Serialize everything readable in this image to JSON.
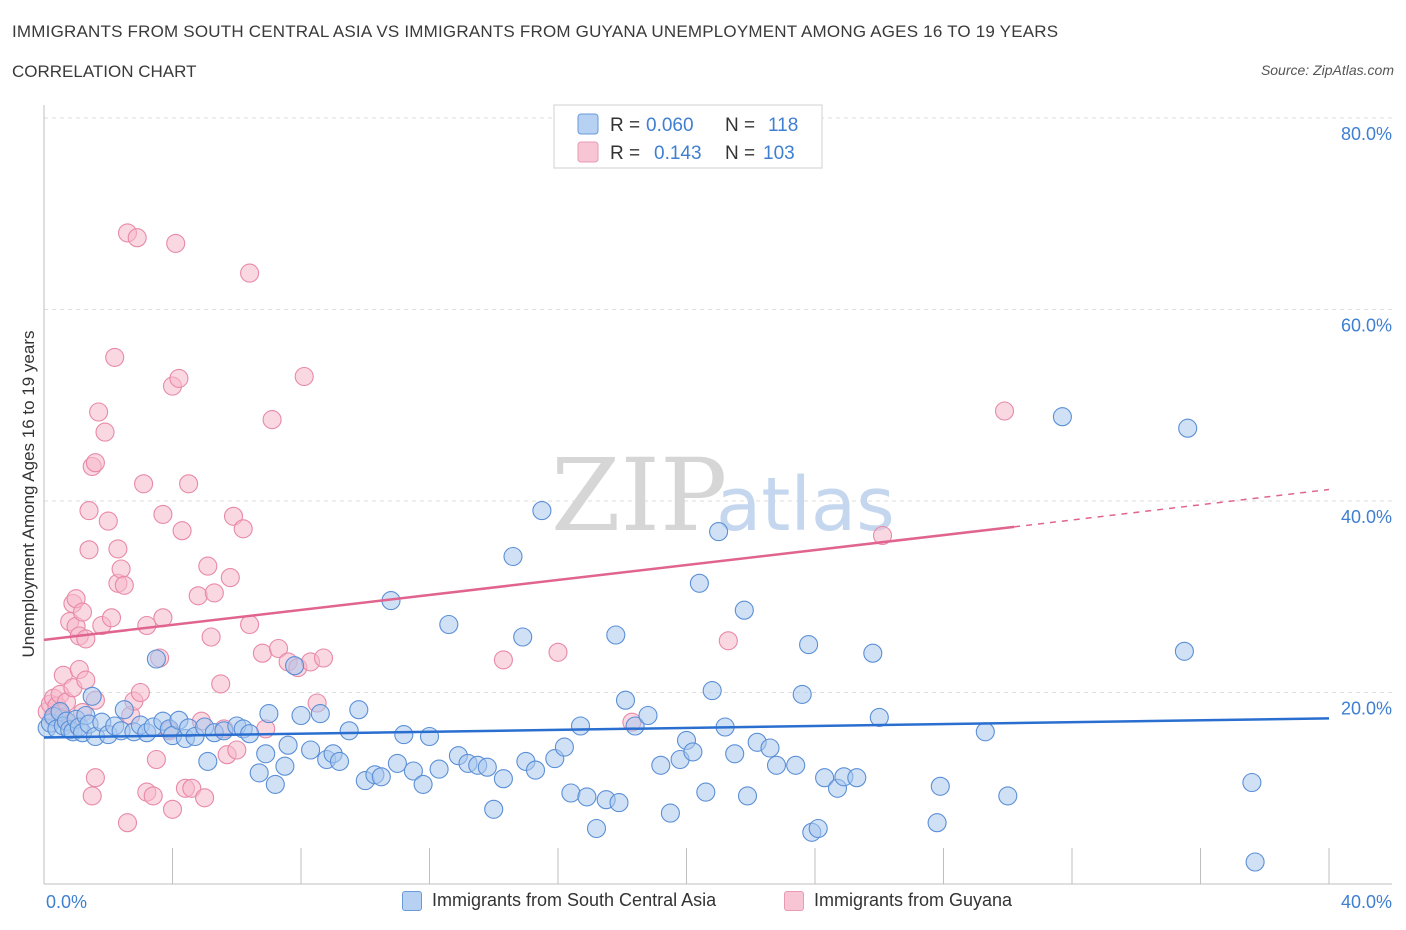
{
  "header": {
    "title": "IMMIGRANTS FROM SOUTH CENTRAL ASIA VS IMMIGRANTS FROM GUYANA UNEMPLOYMENT AMONG AGES 16 TO 19 YEARS",
    "subtitle": "CORRELATION CHART",
    "source": "Source: ZipAtlas.com"
  },
  "watermark": {
    "zip": "ZIP",
    "atlas": "atlas"
  },
  "colors": {
    "blue_fill": "#a9c8ef",
    "blue_stroke": "#5b8fd6",
    "blue_line": "#2a6fd0",
    "pink_fill": "#f5b8cb",
    "pink_stroke": "#e889a8",
    "pink_line": "#e0648f",
    "axis_label": "#3f7fd1"
  },
  "stats_legend": [
    {
      "r_label": "R = ",
      "r_value": "0.060",
      "n_label": "N = ",
      "n_value": "118"
    },
    {
      "r_label": "R = ",
      "r_value": "0.143",
      "n_label": "N = ",
      "n_value": "103"
    }
  ],
  "chart_data": {
    "type": "scatter",
    "title": "IMMIGRANTS FROM SOUTH CENTRAL ASIA VS IMMIGRANTS FROM GUYANA UNEMPLOYMENT AMONG AGES 16 TO 19 YEARS",
    "xlabel": "",
    "ylabel": "Unemployment Among Ages 16 to 19 years",
    "xlim": [
      0,
      40
    ],
    "ylim": [
      0,
      80
    ],
    "x_tick_labels": [
      "0.0%",
      "40.0%"
    ],
    "y_ticks": [
      20,
      40,
      60,
      80
    ],
    "y_tick_labels": [
      "20.0%",
      "40.0%",
      "60.0%",
      "80.0%"
    ],
    "grid": true,
    "legend_position": "top-center",
    "series": [
      {
        "name": "Immigrants from South Central Asia",
        "color": "#a9c8ef",
        "r": 0.06,
        "n": 118,
        "trend": {
          "x0": 0,
          "y0": 15.3,
          "x1": 40,
          "y1": 17.3
        },
        "points": [
          [
            0.1,
            16.3
          ],
          [
            0.2,
            16.8
          ],
          [
            0.3,
            17.5
          ],
          [
            0.4,
            16.2
          ],
          [
            0.5,
            18.0
          ],
          [
            0.6,
            16.5
          ],
          [
            0.7,
            17.0
          ],
          [
            0.8,
            16.1
          ],
          [
            0.9,
            15.9
          ],
          [
            1.0,
            17.2
          ],
          [
            1.1,
            16.4
          ],
          [
            1.2,
            15.8
          ],
          [
            1.3,
            17.6
          ],
          [
            1.4,
            16.7
          ],
          [
            1.5,
            19.6
          ],
          [
            1.6,
            15.4
          ],
          [
            1.8,
            16.9
          ],
          [
            2.0,
            15.6
          ],
          [
            2.2,
            16.5
          ],
          [
            2.4,
            16.0
          ],
          [
            2.5,
            18.2
          ],
          [
            2.8,
            15.9
          ],
          [
            3.0,
            16.6
          ],
          [
            3.2,
            15.8
          ],
          [
            3.4,
            16.4
          ],
          [
            3.5,
            23.5
          ],
          [
            3.7,
            17.0
          ],
          [
            3.9,
            16.2
          ],
          [
            4.0,
            15.5
          ],
          [
            4.2,
            17.1
          ],
          [
            4.4,
            15.2
          ],
          [
            4.5,
            16.3
          ],
          [
            4.7,
            15.4
          ],
          [
            5.0,
            16.4
          ],
          [
            5.1,
            12.8
          ],
          [
            5.3,
            15.8
          ],
          [
            5.6,
            16.0
          ],
          [
            6.0,
            16.5
          ],
          [
            6.2,
            16.2
          ],
          [
            6.4,
            15.7
          ],
          [
            6.7,
            11.6
          ],
          [
            6.9,
            13.6
          ],
          [
            7.0,
            17.8
          ],
          [
            7.2,
            10.4
          ],
          [
            7.5,
            12.3
          ],
          [
            7.6,
            14.5
          ],
          [
            7.8,
            22.8
          ],
          [
            8.0,
            17.6
          ],
          [
            8.3,
            14.0
          ],
          [
            8.6,
            17.8
          ],
          [
            8.8,
            13.0
          ],
          [
            9.0,
            13.6
          ],
          [
            9.2,
            12.8
          ],
          [
            9.5,
            16.0
          ],
          [
            9.8,
            18.2
          ],
          [
            10.0,
            10.8
          ],
          [
            10.3,
            11.4
          ],
          [
            10.5,
            11.2
          ],
          [
            10.8,
            29.6
          ],
          [
            11.0,
            12.6
          ],
          [
            11.2,
            15.6
          ],
          [
            11.5,
            11.8
          ],
          [
            11.8,
            10.4
          ],
          [
            12.0,
            15.4
          ],
          [
            12.3,
            12.0
          ],
          [
            12.6,
            27.1
          ],
          [
            12.9,
            13.4
          ],
          [
            13.2,
            12.6
          ],
          [
            13.5,
            12.4
          ],
          [
            13.8,
            12.2
          ],
          [
            14.0,
            7.8
          ],
          [
            14.3,
            11.0
          ],
          [
            14.6,
            34.2
          ],
          [
            14.9,
            25.8
          ],
          [
            15.0,
            12.8
          ],
          [
            15.3,
            11.9
          ],
          [
            15.5,
            39.0
          ],
          [
            15.9,
            13.1
          ],
          [
            16.2,
            14.3
          ],
          [
            16.4,
            9.5
          ],
          [
            16.7,
            16.5
          ],
          [
            16.9,
            9.1
          ],
          [
            17.2,
            5.8
          ],
          [
            17.5,
            8.8
          ],
          [
            17.8,
            26.0
          ],
          [
            17.9,
            8.5
          ],
          [
            18.1,
            19.2
          ],
          [
            18.4,
            16.5
          ],
          [
            18.8,
            17.6
          ],
          [
            19.2,
            12.4
          ],
          [
            19.5,
            7.4
          ],
          [
            19.8,
            13.0
          ],
          [
            20.0,
            15.0
          ],
          [
            20.2,
            13.8
          ],
          [
            20.4,
            31.4
          ],
          [
            20.6,
            9.6
          ],
          [
            20.8,
            20.2
          ],
          [
            21.0,
            36.8
          ],
          [
            21.2,
            16.4
          ],
          [
            21.5,
            13.6
          ],
          [
            21.8,
            28.6
          ],
          [
            21.9,
            9.2
          ],
          [
            22.2,
            14.8
          ],
          [
            22.6,
            14.2
          ],
          [
            22.8,
            12.4
          ],
          [
            23.4,
            12.4
          ],
          [
            23.6,
            19.8
          ],
          [
            23.8,
            25.0
          ],
          [
            23.9,
            5.4
          ],
          [
            24.1,
            5.8
          ],
          [
            24.3,
            11.1
          ],
          [
            24.7,
            10.0
          ],
          [
            24.9,
            11.2
          ],
          [
            25.3,
            11.1
          ],
          [
            25.8,
            24.1
          ],
          [
            26.0,
            17.4
          ],
          [
            27.8,
            6.4
          ],
          [
            27.9,
            10.2
          ],
          [
            29.3,
            15.9
          ],
          [
            30.0,
            9.2
          ],
          [
            31.7,
            48.8
          ],
          [
            35.6,
            47.6
          ],
          [
            35.5,
            24.3
          ],
          [
            37.6,
            10.6
          ],
          [
            37.7,
            2.3
          ]
        ]
      },
      {
        "name": "Immigrants from Guyana",
        "color": "#f5b8cb",
        "r": 0.143,
        "n": 103,
        "trend": {
          "x0": 0,
          "y0": 25.5,
          "x1": 30.2,
          "y1": 37.3,
          "dashed_x1": 40,
          "dashed_y1": 41.2
        },
        "points": [
          [
            0.1,
            18.0
          ],
          [
            0.2,
            18.8
          ],
          [
            0.3,
            17.3
          ],
          [
            0.3,
            19.4
          ],
          [
            0.4,
            18.6
          ],
          [
            0.5,
            17.8
          ],
          [
            0.5,
            19.8
          ],
          [
            0.6,
            21.8
          ],
          [
            0.6,
            17.4
          ],
          [
            0.7,
            19.0
          ],
          [
            0.8,
            27.4
          ],
          [
            0.8,
            16.8
          ],
          [
            0.9,
            29.3
          ],
          [
            0.9,
            20.5
          ],
          [
            1.0,
            26.9
          ],
          [
            1.0,
            29.8
          ],
          [
            1.1,
            25.9
          ],
          [
            1.1,
            22.4
          ],
          [
            1.2,
            28.4
          ],
          [
            1.2,
            17.9
          ],
          [
            1.3,
            25.6
          ],
          [
            1.3,
            21.3
          ],
          [
            1.4,
            39.0
          ],
          [
            1.4,
            34.9
          ],
          [
            1.5,
            43.6
          ],
          [
            1.5,
            9.2
          ],
          [
            1.6,
            11.1
          ],
          [
            1.6,
            44.0
          ],
          [
            1.6,
            19.2
          ],
          [
            1.7,
            49.3
          ],
          [
            1.8,
            27.0
          ],
          [
            1.9,
            47.2
          ],
          [
            2.0,
            37.9
          ],
          [
            2.1,
            27.8
          ],
          [
            2.2,
            55.0
          ],
          [
            2.3,
            35.0
          ],
          [
            2.3,
            31.4
          ],
          [
            2.4,
            32.9
          ],
          [
            2.5,
            31.2
          ],
          [
            2.6,
            6.4
          ],
          [
            2.6,
            68.0
          ],
          [
            2.7,
            17.6
          ],
          [
            2.8,
            19.1
          ],
          [
            2.9,
            67.5
          ],
          [
            3.0,
            20.0
          ],
          [
            3.1,
            41.8
          ],
          [
            3.2,
            27.0
          ],
          [
            3.2,
            9.6
          ],
          [
            3.4,
            9.2
          ],
          [
            3.5,
            13.0
          ],
          [
            3.6,
            23.6
          ],
          [
            3.7,
            27.8
          ],
          [
            3.7,
            38.6
          ],
          [
            3.9,
            16.0
          ],
          [
            4.0,
            7.8
          ],
          [
            4.0,
            52.0
          ],
          [
            4.1,
            66.9
          ],
          [
            4.2,
            52.8
          ],
          [
            4.3,
            36.9
          ],
          [
            4.4,
            10.0
          ],
          [
            4.5,
            41.8
          ],
          [
            4.6,
            10.0
          ],
          [
            4.8,
            30.1
          ],
          [
            4.9,
            17.0
          ],
          [
            5.0,
            9.0
          ],
          [
            5.1,
            33.2
          ],
          [
            5.2,
            25.8
          ],
          [
            5.3,
            30.4
          ],
          [
            5.5,
            20.9
          ],
          [
            5.6,
            16.2
          ],
          [
            5.7,
            13.5
          ],
          [
            5.8,
            32.0
          ],
          [
            5.9,
            38.4
          ],
          [
            6.0,
            14.0
          ],
          [
            6.2,
            37.1
          ],
          [
            6.4,
            27.1
          ],
          [
            6.4,
            63.8
          ],
          [
            6.8,
            24.1
          ],
          [
            6.9,
            16.2
          ],
          [
            7.1,
            48.5
          ],
          [
            7.3,
            24.6
          ],
          [
            7.6,
            23.2
          ],
          [
            7.9,
            22.6
          ],
          [
            8.1,
            53.0
          ],
          [
            8.3,
            23.2
          ],
          [
            8.5,
            18.9
          ],
          [
            8.7,
            23.6
          ],
          [
            14.3,
            23.4
          ],
          [
            16.0,
            24.2
          ],
          [
            18.3,
            16.9
          ],
          [
            21.3,
            25.4
          ],
          [
            26.1,
            36.4
          ],
          [
            29.9,
            49.4
          ]
        ]
      }
    ]
  },
  "bottom_legend": [
    {
      "label": "Immigrants from South Central Asia"
    },
    {
      "label": "Immigrants from Guyana"
    }
  ]
}
